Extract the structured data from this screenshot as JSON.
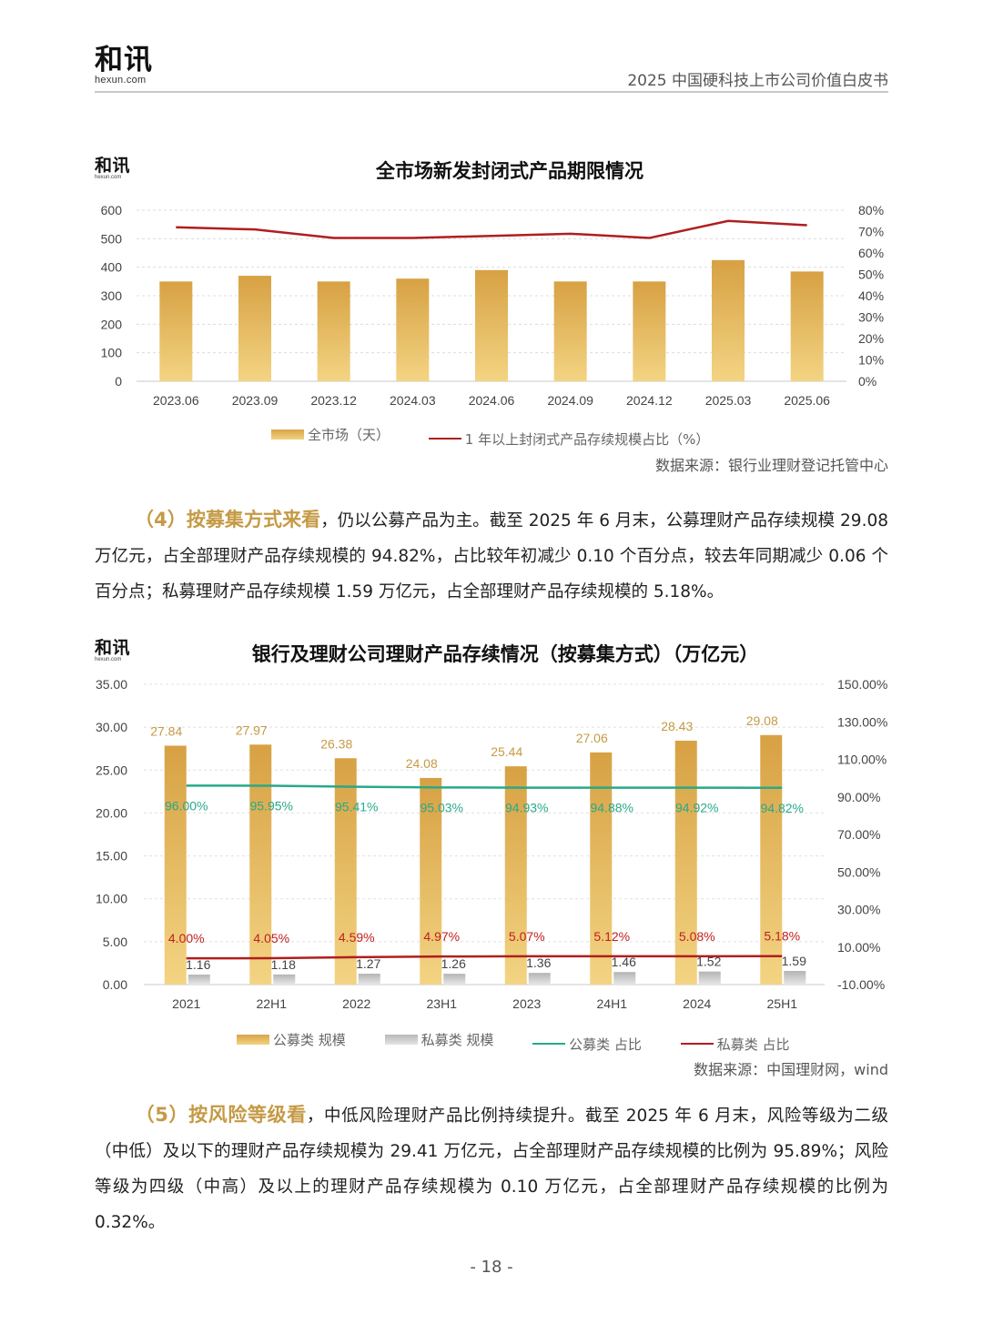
{
  "header": {
    "logo_text": "和讯",
    "logo_sub": "hexun.com",
    "title": "2025 中国硬科技上市公司价值白皮书"
  },
  "chart1": {
    "logo_text": "和讯",
    "logo_sub": "hexun.com",
    "legend": [
      "全市场（天）",
      "1 年以上封闭式产品存续规模占比（%）"
    ],
    "source": "数据来源：银行业理财登记托管中心"
  },
  "chart2": {
    "logo_text": "和讯",
    "logo_sub": "hexun.com",
    "legend": [
      "公募类 规模",
      "私募类 规模",
      "公募类 占比",
      "私募类 占比"
    ],
    "source": "数据来源：中国理财网，wind"
  },
  "paragraph4": {
    "lead": "（4）按募集方式来看",
    "body": "，仍以公募产品为主。截至 2025 年 6 月末，公募理财产品存续规模 29.08 万亿元，占全部理财产品存续规模的 94.82%，占比较年初减少 0.10 个百分点，较去年同期减少 0.06 个百分点；私募理财产品存续规模 1.59 万亿元，占全部理财产品存续规模的 5.18%。"
  },
  "paragraph5": {
    "lead": "（5）按风险等级看",
    "body": "，中低风险理财产品比例持续提升。截至 2025 年 6 月末，风险等级为二级（中低）及以下的理财产品存续规模为 29.41 万亿元，占全部理财产品存续规模的比例为 95.89%；风险等级为四级（中高）及以上的理财产品存续规模为 0.10 万亿元，占全部理财产品存续规模的比例为 0.32%。"
  },
  "page_number": "- 18 -",
  "chart_data": [
    {
      "type": "bar",
      "title": "全市场新发封闭式产品期限情况",
      "categories": [
        "2023.06",
        "2023.09",
        "2023.12",
        "2024.03",
        "2024.06",
        "2024.09",
        "2024.12",
        "2025.03",
        "2025.06"
      ],
      "series": [
        {
          "name": "全市场（天）",
          "type": "bar",
          "axis": "left",
          "values": [
            350,
            370,
            350,
            360,
            390,
            350,
            350,
            425,
            385
          ]
        },
        {
          "name": "1 年以上封闭式产品存续规模占比（%）",
          "type": "line",
          "axis": "right",
          "values": [
            72,
            71,
            67,
            67,
            68,
            69,
            67,
            75,
            73
          ]
        }
      ],
      "ylim": [
        0,
        600
      ],
      "yticks": [
        "0",
        "100",
        "200",
        "300",
        "400",
        "500",
        "600"
      ],
      "y2lim": [
        0,
        80
      ],
      "y2ticks": [
        "0%",
        "10%",
        "20%",
        "30%",
        "40%",
        "50%",
        "60%",
        "70%",
        "80%"
      ],
      "grid": true,
      "legend_position": "bottom"
    },
    {
      "type": "bar",
      "title": "银行及理财公司理财产品存续情况（按募集方式）（万亿元）",
      "categories": [
        "2021",
        "22H1",
        "2022",
        "23H1",
        "2023",
        "24H1",
        "2024",
        "25H1"
      ],
      "series": [
        {
          "name": "公募类 规模",
          "type": "bar",
          "axis": "left",
          "values": [
            27.84,
            27.97,
            26.38,
            24.08,
            25.44,
            27.06,
            28.43,
            29.08
          ],
          "labels": [
            "27.84",
            "27.97",
            "26.38",
            "24.08",
            "25.44",
            "27.06",
            "28.43",
            "29.08"
          ]
        },
        {
          "name": "私募类 规模",
          "type": "bar",
          "axis": "left",
          "values": [
            1.16,
            1.18,
            1.27,
            1.26,
            1.36,
            1.46,
            1.52,
            1.59
          ],
          "labels": [
            "1.16",
            "1.18",
            "1.27",
            "1.26",
            "1.36",
            "1.46",
            "1.52",
            "1.59"
          ]
        },
        {
          "name": "公募类 占比",
          "type": "line",
          "axis": "right",
          "values": [
            96.0,
            95.95,
            95.41,
            95.03,
            94.93,
            94.88,
            94.92,
            94.82
          ],
          "labels": [
            "96.00%",
            "95.95%",
            "95.41%",
            "95.03%",
            "94.93%",
            "94.88%",
            "94.92%",
            "94.82%"
          ]
        },
        {
          "name": "私募类 占比",
          "type": "line",
          "axis": "right",
          "values": [
            4.0,
            4.05,
            4.59,
            4.97,
            5.07,
            5.12,
            5.08,
            5.18
          ],
          "labels": [
            "4.00%",
            "4.05%",
            "4.59%",
            "4.97%",
            "5.07%",
            "5.12%",
            "5.08%",
            "5.18%"
          ]
        }
      ],
      "ylim": [
        0,
        35
      ],
      "yticks": [
        "0.00",
        "5.00",
        "10.00",
        "15.00",
        "20.00",
        "25.00",
        "30.00",
        "35.00"
      ],
      "y2lim": [
        -10,
        150
      ],
      "y2ticks": [
        "-10.00%",
        "10.00%",
        "30.00%",
        "50.00%",
        "70.00%",
        "90.00%",
        "110.00%",
        "130.00%",
        "150.00%"
      ],
      "grid": true,
      "legend_position": "bottom"
    }
  ]
}
